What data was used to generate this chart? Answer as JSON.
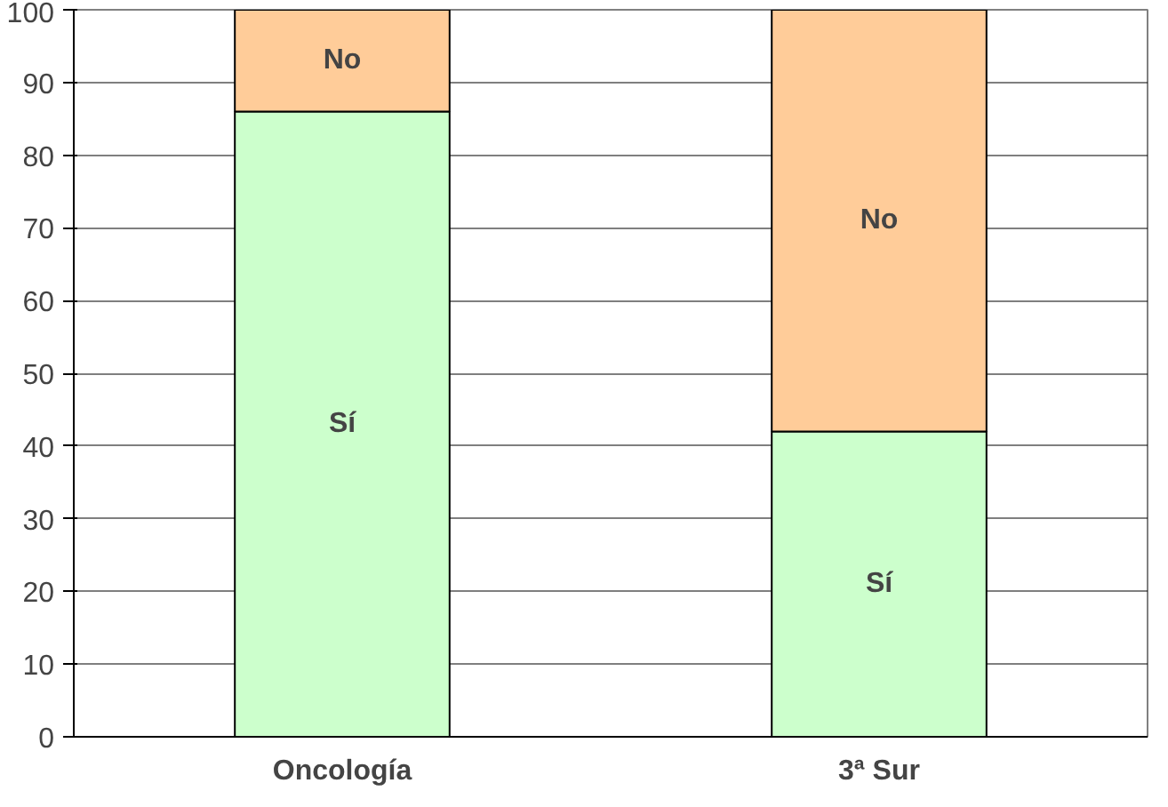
{
  "chart_data": {
    "type": "bar",
    "stacked": true,
    "categories": [
      "Oncología",
      "3ª Sur"
    ],
    "series": [
      {
        "name": "Sí",
        "color": "#ccffcc",
        "values": [
          86,
          42
        ]
      },
      {
        "name": "No",
        "color": "#ffcc99",
        "values": [
          14,
          58
        ]
      }
    ],
    "ylim": [
      0,
      100
    ],
    "yticks": [
      0,
      10,
      20,
      30,
      40,
      50,
      60,
      70,
      80,
      90,
      100
    ],
    "grid": "y"
  }
}
